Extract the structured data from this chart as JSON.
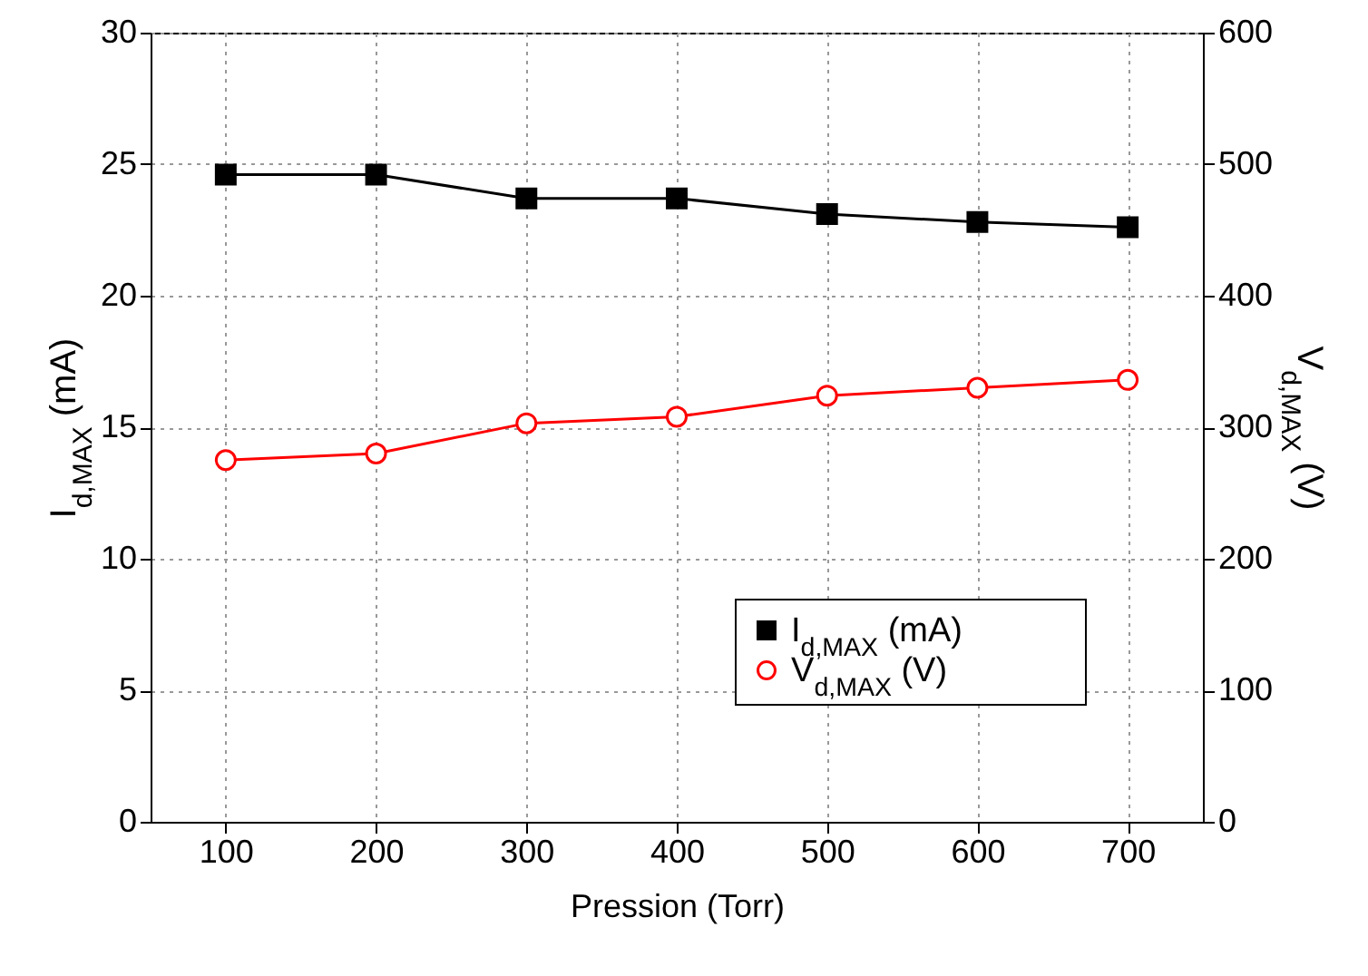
{
  "chart_data": {
    "type": "line",
    "xlabel": "Pression (Torr)",
    "ylabel": "I$_{d,MAX}$ (mA)",
    "y2label": "V$_{d,MAX}$ (V)",
    "x": [
      100,
      200,
      300,
      400,
      500,
      600,
      700
    ],
    "xlim": [
      50,
      750
    ],
    "xticks": [
      100,
      200,
      300,
      400,
      500,
      600,
      700
    ],
    "ylim": [
      0,
      30
    ],
    "yticks": [
      0,
      5,
      10,
      15,
      20,
      25,
      30
    ],
    "y2lim": [
      0,
      600
    ],
    "y2ticks": [
      0,
      100,
      200,
      300,
      400,
      500,
      600
    ],
    "grid": true,
    "legend": "bottom right",
    "series": [
      {
        "name": "I$_{d,MAX}$ (mA)",
        "color": "#000000",
        "marker": "square",
        "values": [
          24.6,
          24.6,
          23.7,
          23.7,
          23.1,
          22.8,
          22.6
        ]
      },
      {
        "name": "V$_{d,MAX}$ (V)",
        "color": "#ff0000",
        "marker": "circle",
        "axis": "y2",
        "values": [
          275,
          280,
          303,
          308,
          324,
          330,
          336
        ]
      }
    ]
  }
}
